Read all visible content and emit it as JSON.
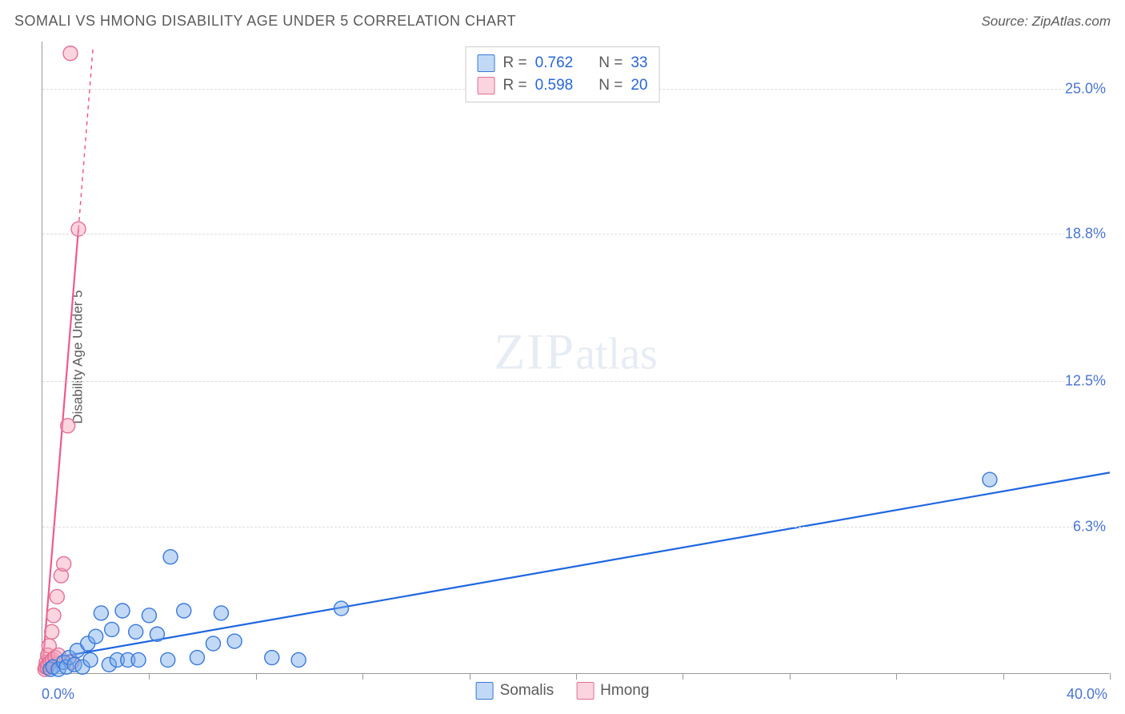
{
  "title": "SOMALI VS HMONG DISABILITY AGE UNDER 5 CORRELATION CHART",
  "source": "Source: ZipAtlas.com",
  "y_axis_title": "Disability Age Under 5",
  "watermark": {
    "zip": "ZIP",
    "atlas": "atlas"
  },
  "stats": [
    {
      "series": "somalis",
      "r_label": "R =",
      "r_value": "0.762",
      "n_label": "N =",
      "n_value": "33"
    },
    {
      "series": "hmong",
      "r_label": "R =",
      "r_value": "0.598",
      "n_label": "N =",
      "n_value": "20"
    }
  ],
  "legend": [
    {
      "key": "somalis",
      "label": "Somalis"
    },
    {
      "key": "hmong",
      "label": "Hmong"
    }
  ],
  "colors": {
    "somalis_fill": "rgba(120,170,235,0.45)",
    "somalis_stroke": "#3a78d8",
    "somalis_line": "#1f66e0",
    "hmong_fill": "rgba(245,160,185,0.45)",
    "hmong_stroke": "#e46f95",
    "hmong_line": "#ef5a8b",
    "grid": "#dcdcdc",
    "axis": "#999999",
    "text_muted": "#5a5a5a",
    "value_blue": "#2866d8",
    "label_blue": "#4a74d0",
    "background": "#ffffff"
  },
  "chart": {
    "type": "scatter",
    "xlim": [
      0,
      40
    ],
    "ylim": [
      0,
      27
    ],
    "x_origin_label": "0.0%",
    "x_max_label": "40.0%",
    "x_ticks": [
      4,
      8,
      12,
      16,
      20,
      24,
      28,
      32,
      36,
      40
    ],
    "y_gridlines": [
      {
        "value": 6.3,
        "label": "6.3%"
      },
      {
        "value": 12.5,
        "label": "12.5%"
      },
      {
        "value": 18.8,
        "label": "18.8%"
      },
      {
        "value": 25.0,
        "label": "25.0%"
      }
    ],
    "marker_radius": 9,
    "marker_stroke_width": 1.4,
    "line_width": 2.2,
    "series": {
      "somalis": {
        "points": [
          [
            0.3,
            0.2
          ],
          [
            0.4,
            0.3
          ],
          [
            0.6,
            0.2
          ],
          [
            0.8,
            0.5
          ],
          [
            0.9,
            0.3
          ],
          [
            1.0,
            0.7
          ],
          [
            1.2,
            0.4
          ],
          [
            1.3,
            1.0
          ],
          [
            1.5,
            0.3
          ],
          [
            1.7,
            1.3
          ],
          [
            1.8,
            0.6
          ],
          [
            2.0,
            1.6
          ],
          [
            2.2,
            2.6
          ],
          [
            2.5,
            0.4
          ],
          [
            2.6,
            1.9
          ],
          [
            2.8,
            0.6
          ],
          [
            3.0,
            2.7
          ],
          [
            3.2,
            0.6
          ],
          [
            3.5,
            1.8
          ],
          [
            3.6,
            0.6
          ],
          [
            4.0,
            2.5
          ],
          [
            4.3,
            1.7
          ],
          [
            4.7,
            0.6
          ],
          [
            4.8,
            5.0
          ],
          [
            5.3,
            2.7
          ],
          [
            5.8,
            0.7
          ],
          [
            6.4,
            1.3
          ],
          [
            6.7,
            2.6
          ],
          [
            7.2,
            1.4
          ],
          [
            8.6,
            0.7
          ],
          [
            9.6,
            0.6
          ],
          [
            11.2,
            2.8
          ],
          [
            35.5,
            8.3
          ]
        ],
        "trend": {
          "x1": 0,
          "y1": 0.6,
          "x2": 40,
          "y2": 8.6
        }
      },
      "hmong": {
        "points": [
          [
            0.1,
            0.2
          ],
          [
            0.12,
            0.3
          ],
          [
            0.15,
            0.5
          ],
          [
            0.18,
            0.3
          ],
          [
            0.2,
            0.8
          ],
          [
            0.22,
            0.4
          ],
          [
            0.25,
            1.2
          ],
          [
            0.3,
            0.5
          ],
          [
            0.35,
            1.8
          ],
          [
            0.38,
            0.6
          ],
          [
            0.42,
            2.5
          ],
          [
            0.48,
            0.7
          ],
          [
            0.55,
            3.3
          ],
          [
            0.6,
            0.8
          ],
          [
            0.7,
            4.2
          ],
          [
            0.8,
            4.7
          ],
          [
            0.95,
            10.6
          ],
          [
            1.1,
            0.5
          ],
          [
            1.35,
            19.0
          ],
          [
            1.05,
            26.5
          ]
        ],
        "trend_solid": {
          "x1": 0,
          "y1": 0.2,
          "x2": 1.35,
          "y2": 19.0
        },
        "trend_dash": {
          "x1": 1.35,
          "y1": 19.0,
          "x2": 1.9,
          "y2": 26.8
        }
      }
    }
  }
}
